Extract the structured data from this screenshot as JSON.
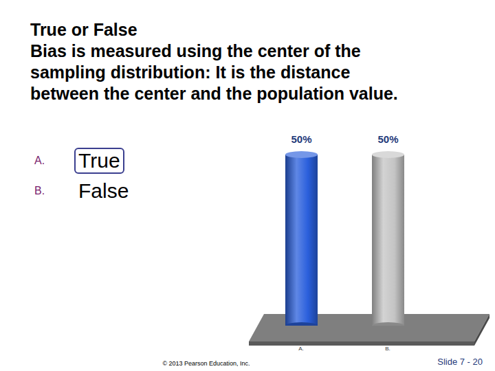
{
  "slide": {
    "question": [
      "True or False",
      "Bias is measured using the center of the",
      "sampling distribution: It is the distance",
      "between the center and the population value."
    ],
    "options": [
      {
        "letter": "A.",
        "text": "True",
        "highlighted": true
      },
      {
        "letter": "B.",
        "text": "False",
        "highlighted": false
      }
    ],
    "footer": "© 2013 Pearson Education, Inc.",
    "slide_number": "Slide 7 - 20"
  },
  "chart_data": {
    "type": "bar",
    "categories": [
      "A.",
      "B."
    ],
    "values": [
      50,
      50
    ],
    "value_labels": [
      "50%",
      "50%"
    ],
    "colors": [
      "#2a5fdc",
      "#c4c4c4"
    ],
    "ylim": [
      0,
      50
    ],
    "data_labels": true,
    "tick_labels": "x"
  }
}
